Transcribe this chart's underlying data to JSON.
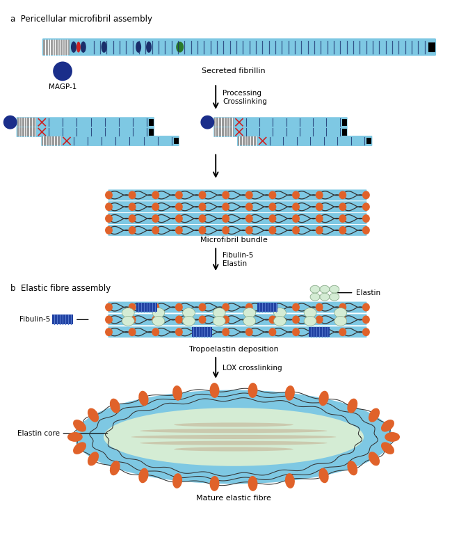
{
  "bg_color": "#ffffff",
  "light_blue": "#7ec8e3",
  "orange": "#e0622a",
  "dark_navy": "#1a2e6b",
  "gray": "#999999",
  "red": "#cc2222",
  "green": "#2a7a2a",
  "elastin_fill": "#d4ecd4",
  "fibulin_blue": "#1e3fa0",
  "fibulin_stripe": "#5577cc",
  "wave_dark": "#333333",
  "magp_blue": "#1a2e8a",
  "title_a": "a  Pericellular microfibril assembly",
  "title_b": "b  Elastic fibre assembly",
  "label_secreted": "Secreted fibrillin",
  "label_processing": "Processing\nCrosslinking",
  "label_microfibril": "Microfibril bundle",
  "label_fibulin5": "Fibulin-5\nElastin",
  "label_tropo": "Tropoelastin deposition",
  "label_lox": "LOX crosslinking",
  "label_mature": "Mature elastic fibre",
  "label_magp": "MAGP-1",
  "label_elastin_legend": "Elastin",
  "label_fibulin_legend": "Fibulin-5",
  "label_elastin_core": "Elastin core"
}
